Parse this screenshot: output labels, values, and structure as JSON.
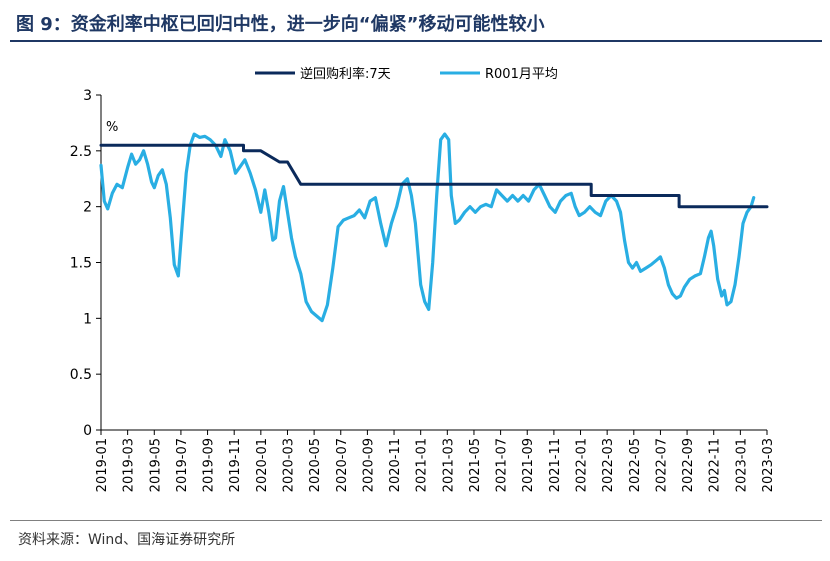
{
  "figure": {
    "title": "图 9：资金利率中枢已回归中性，进一步向“偏紧”移动可能性较小",
    "source": "资料来源：Wind、国海证券研究所"
  },
  "colors": {
    "reverse_repo": "#0b2a5b",
    "r001": "#29aee3",
    "title": "#1f3864",
    "axis": "#000000"
  },
  "chart_data": {
    "type": "line",
    "unit_label": "%",
    "ylim": [
      0,
      3
    ],
    "y_ticks": [
      0,
      0.5,
      1,
      1.5,
      2,
      2.5,
      3
    ],
    "y_tick_labels": [
      "0",
      "0.5",
      "1",
      "1.5",
      "2",
      "2.5",
      "3"
    ],
    "x_range": [
      0,
      50
    ],
    "x_ticks": [
      0,
      2,
      4,
      6,
      8,
      10,
      12,
      14,
      16,
      18,
      20,
      22,
      24,
      26,
      28,
      30,
      32,
      34,
      36,
      38,
      40,
      42,
      44,
      46,
      48,
      50
    ],
    "x_tick_labels": [
      "2019-01",
      "2019-03",
      "2019-05",
      "2019-07",
      "2019-09",
      "2019-11",
      "2020-01",
      "2020-03",
      "2020-05",
      "2020-07",
      "2020-09",
      "2020-11",
      "2021-01",
      "2021-03",
      "2021-05",
      "2021-07",
      "2021-09",
      "2021-11",
      "2022-01",
      "2022-03",
      "2022-05",
      "2022-07",
      "2022-09",
      "2022-11",
      "2023-01",
      "2023-03"
    ],
    "series": [
      {
        "name": "逆回购利率:7天",
        "style": "step",
        "points": [
          [
            0,
            2.55
          ],
          [
            10.7,
            2.55
          ],
          [
            10.7,
            2.5
          ],
          [
            12.0,
            2.5
          ],
          [
            13.4,
            2.4
          ],
          [
            14.0,
            2.4
          ],
          [
            15.0,
            2.2
          ],
          [
            36.8,
            2.2
          ],
          [
            36.8,
            2.1
          ],
          [
            43.4,
            2.1
          ],
          [
            43.4,
            2.0
          ],
          [
            50,
            2.0
          ]
        ]
      },
      {
        "name": "R001月平均",
        "style": "line",
        "points": [
          [
            0.0,
            2.37
          ],
          [
            0.25,
            2.05
          ],
          [
            0.5,
            1.98
          ],
          [
            0.85,
            2.12
          ],
          [
            1.2,
            2.2
          ],
          [
            1.6,
            2.17
          ],
          [
            2.0,
            2.35
          ],
          [
            2.3,
            2.47
          ],
          [
            2.6,
            2.38
          ],
          [
            2.9,
            2.42
          ],
          [
            3.2,
            2.5
          ],
          [
            3.5,
            2.38
          ],
          [
            3.8,
            2.22
          ],
          [
            4.0,
            2.17
          ],
          [
            4.3,
            2.28
          ],
          [
            4.6,
            2.33
          ],
          [
            4.9,
            2.2
          ],
          [
            5.2,
            1.9
          ],
          [
            5.5,
            1.48
          ],
          [
            5.8,
            1.38
          ],
          [
            6.1,
            1.85
          ],
          [
            6.4,
            2.3
          ],
          [
            6.7,
            2.55
          ],
          [
            7.0,
            2.65
          ],
          [
            7.4,
            2.62
          ],
          [
            7.8,
            2.63
          ],
          [
            8.2,
            2.6
          ],
          [
            8.6,
            2.55
          ],
          [
            9.0,
            2.45
          ],
          [
            9.3,
            2.6
          ],
          [
            9.7,
            2.5
          ],
          [
            10.1,
            2.3
          ],
          [
            10.4,
            2.35
          ],
          [
            10.8,
            2.42
          ],
          [
            11.2,
            2.3
          ],
          [
            11.6,
            2.15
          ],
          [
            12.0,
            1.95
          ],
          [
            12.3,
            2.15
          ],
          [
            12.6,
            1.95
          ],
          [
            12.9,
            1.7
          ],
          [
            13.1,
            1.72
          ],
          [
            13.4,
            2.05
          ],
          [
            13.7,
            2.18
          ],
          [
            14.0,
            1.95
          ],
          [
            14.3,
            1.72
          ],
          [
            14.6,
            1.55
          ],
          [
            15.0,
            1.4
          ],
          [
            15.4,
            1.15
          ],
          [
            15.8,
            1.06
          ],
          [
            16.2,
            1.02
          ],
          [
            16.6,
            0.98
          ],
          [
            17.0,
            1.12
          ],
          [
            17.4,
            1.45
          ],
          [
            17.8,
            1.82
          ],
          [
            18.2,
            1.88
          ],
          [
            18.6,
            1.9
          ],
          [
            19.0,
            1.92
          ],
          [
            19.4,
            1.97
          ],
          [
            19.8,
            1.9
          ],
          [
            20.2,
            2.05
          ],
          [
            20.6,
            2.08
          ],
          [
            21.0,
            1.85
          ],
          [
            21.4,
            1.65
          ],
          [
            21.8,
            1.85
          ],
          [
            22.2,
            2.0
          ],
          [
            22.6,
            2.2
          ],
          [
            23.0,
            2.25
          ],
          [
            23.3,
            2.1
          ],
          [
            23.6,
            1.85
          ],
          [
            24.0,
            1.3
          ],
          [
            24.3,
            1.15
          ],
          [
            24.6,
            1.08
          ],
          [
            24.9,
            1.5
          ],
          [
            25.2,
            2.1
          ],
          [
            25.5,
            2.6
          ],
          [
            25.8,
            2.65
          ],
          [
            26.1,
            2.6
          ],
          [
            26.3,
            2.1
          ],
          [
            26.6,
            1.85
          ],
          [
            26.9,
            1.88
          ],
          [
            27.3,
            1.95
          ],
          [
            27.7,
            2.0
          ],
          [
            28.1,
            1.95
          ],
          [
            28.5,
            2.0
          ],
          [
            28.9,
            2.02
          ],
          [
            29.3,
            2.0
          ],
          [
            29.7,
            2.15
          ],
          [
            30.1,
            2.1
          ],
          [
            30.5,
            2.05
          ],
          [
            30.9,
            2.1
          ],
          [
            31.3,
            2.05
          ],
          [
            31.7,
            2.1
          ],
          [
            32.1,
            2.05
          ],
          [
            32.5,
            2.15
          ],
          [
            32.9,
            2.2
          ],
          [
            33.3,
            2.1
          ],
          [
            33.7,
            2.0
          ],
          [
            34.1,
            1.95
          ],
          [
            34.5,
            2.05
          ],
          [
            34.9,
            2.1
          ],
          [
            35.3,
            2.12
          ],
          [
            35.6,
            2.0
          ],
          [
            35.9,
            1.92
          ],
          [
            36.3,
            1.95
          ],
          [
            36.7,
            2.0
          ],
          [
            37.1,
            1.95
          ],
          [
            37.5,
            1.92
          ],
          [
            37.9,
            2.05
          ],
          [
            38.3,
            2.1
          ],
          [
            38.7,
            2.05
          ],
          [
            39.0,
            1.95
          ],
          [
            39.3,
            1.7
          ],
          [
            39.6,
            1.5
          ],
          [
            39.9,
            1.45
          ],
          [
            40.2,
            1.5
          ],
          [
            40.5,
            1.42
          ],
          [
            40.9,
            1.45
          ],
          [
            41.3,
            1.48
          ],
          [
            41.7,
            1.52
          ],
          [
            42.0,
            1.55
          ],
          [
            42.3,
            1.45
          ],
          [
            42.6,
            1.3
          ],
          [
            42.9,
            1.22
          ],
          [
            43.2,
            1.18
          ],
          [
            43.5,
            1.2
          ],
          [
            43.8,
            1.28
          ],
          [
            44.2,
            1.35
          ],
          [
            44.6,
            1.38
          ],
          [
            45.0,
            1.4
          ],
          [
            45.3,
            1.55
          ],
          [
            45.6,
            1.72
          ],
          [
            45.8,
            1.78
          ],
          [
            46.0,
            1.65
          ],
          [
            46.3,
            1.35
          ],
          [
            46.6,
            1.2
          ],
          [
            46.8,
            1.25
          ],
          [
            47.0,
            1.12
          ],
          [
            47.3,
            1.15
          ],
          [
            47.6,
            1.3
          ],
          [
            47.9,
            1.55
          ],
          [
            48.2,
            1.85
          ],
          [
            48.5,
            1.95
          ],
          [
            48.8,
            2.0
          ],
          [
            49.0,
            2.08
          ]
        ]
      }
    ]
  }
}
